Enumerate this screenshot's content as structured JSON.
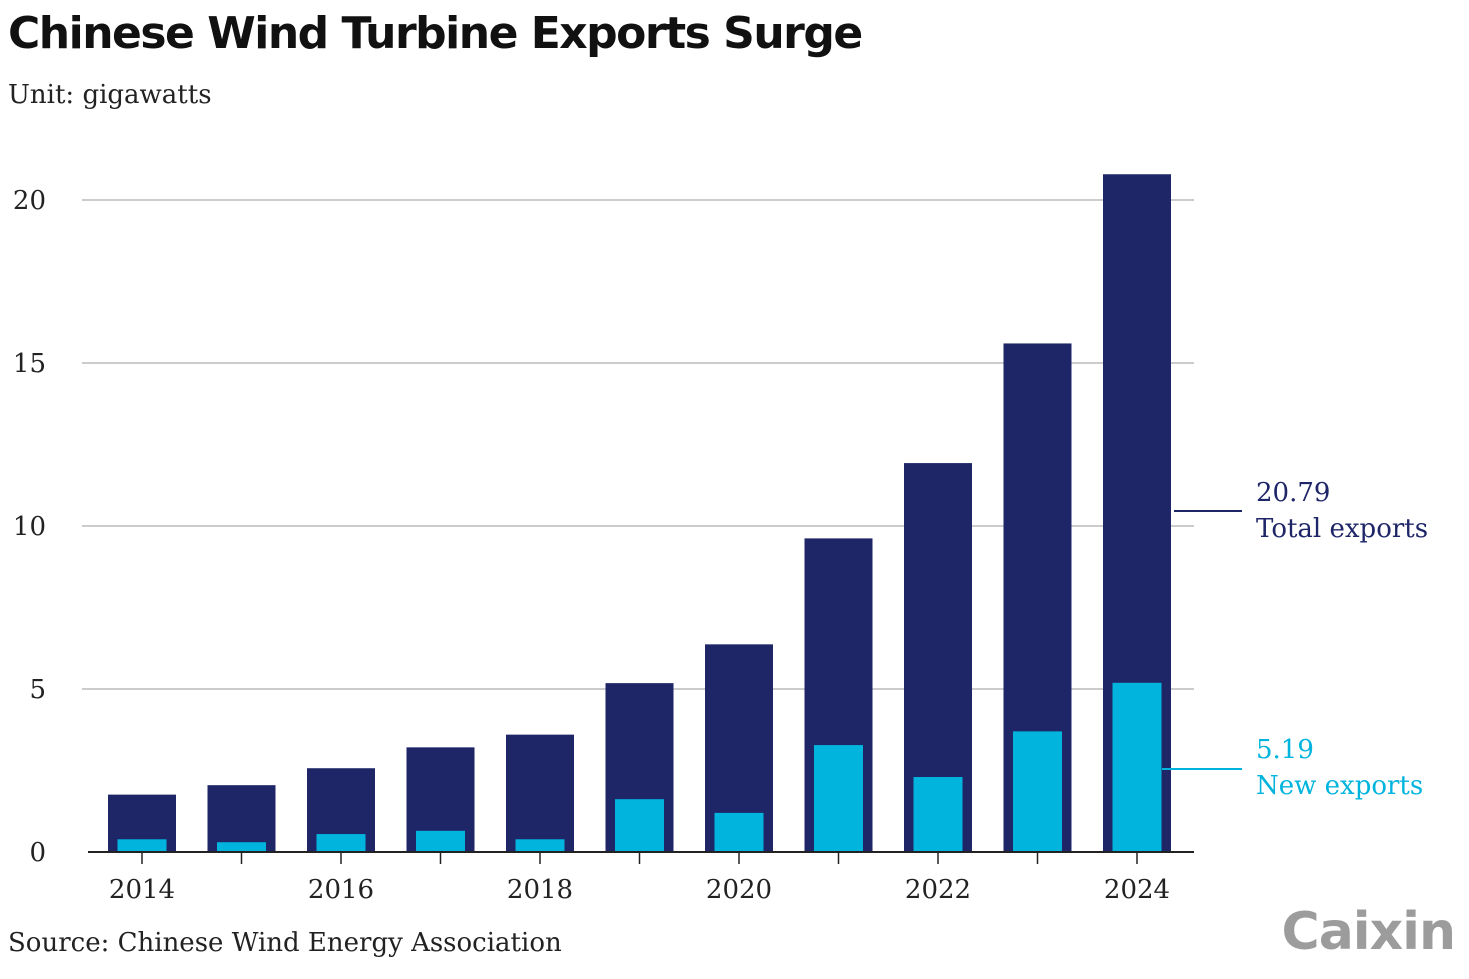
{
  "chart_data": {
    "type": "bar",
    "title": "Chinese Wind Turbine Exports Surge",
    "subtitle": "Unit: gigawatts",
    "source": "Source: Chinese Wind Energy Association",
    "logo": "Caixin",
    "x": [
      2014,
      2015,
      2016,
      2017,
      2018,
      2019,
      2020,
      2021,
      2022,
      2023,
      2024
    ],
    "x_tick_labels": [
      "2014",
      "2016",
      "2018",
      "2020",
      "2022",
      "2024"
    ],
    "y_ticks": [
      0,
      5,
      10,
      15,
      20
    ],
    "ylim": [
      0,
      20
    ],
    "grid": true,
    "series": [
      {
        "name": "Total exports",
        "color": "#1f2668",
        "values": [
          1.76,
          2.05,
          2.57,
          3.21,
          3.6,
          5.18,
          6.37,
          9.62,
          11.93,
          15.6,
          20.79
        ]
      },
      {
        "name": "New exports",
        "color": "#00b4dd",
        "values": [
          0.39,
          0.3,
          0.55,
          0.65,
          0.39,
          1.62,
          1.2,
          3.28,
          2.3,
          3.7,
          5.19
        ]
      }
    ],
    "annotations": [
      {
        "value": "20.79",
        "label": "Total exports",
        "color": "#1f2668"
      },
      {
        "value": "5.19",
        "label": "New exports",
        "color": "#00b4dd"
      }
    ]
  }
}
